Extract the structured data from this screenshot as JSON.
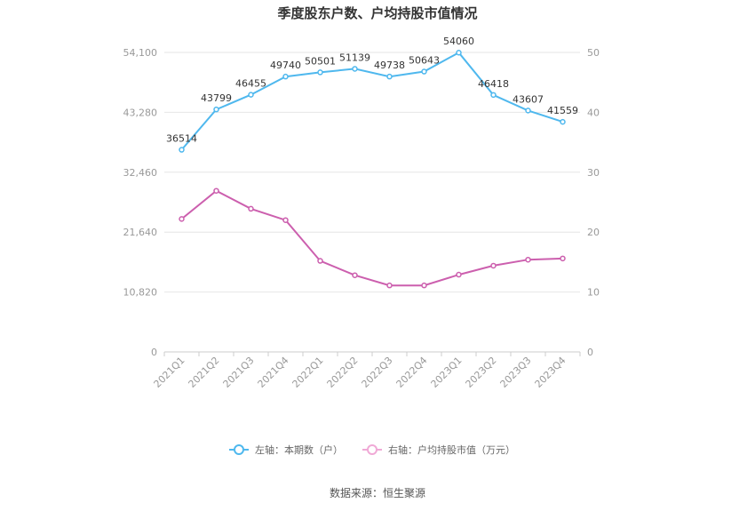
{
  "chart_data": {
    "type": "line",
    "title": "季度股东户数、户均持股市值情况",
    "categories": [
      "2021Q1",
      "2021Q2",
      "2021Q3",
      "2021Q4",
      "2022Q1",
      "2022Q2",
      "2022Q3",
      "2022Q4",
      "2023Q1",
      "2023Q2",
      "2023Q3",
      "2023Q4"
    ],
    "left_axis": {
      "ticks": [
        "0",
        "10,820",
        "21,640",
        "32,460",
        "43,280",
        "54,100"
      ],
      "ylim": [
        0,
        54100
      ]
    },
    "right_axis": {
      "ticks": [
        "0",
        "10",
        "20",
        "30",
        "40",
        "50"
      ],
      "ylim": [
        0,
        50
      ]
    },
    "grid": true,
    "legend_position": "bottom",
    "series": [
      {
        "name": "左轴：本期数（户）",
        "axis": "left",
        "color": "#4fb8ee",
        "values": [
          36514,
          43799,
          46455,
          49740,
          50501,
          51139,
          49738,
          50643,
          54060,
          46418,
          43607,
          41559
        ],
        "labels": [
          "36514",
          "43799",
          "46455",
          "49740",
          "50501",
          "51139",
          "49738",
          "50643",
          "54060",
          "46418",
          "43607",
          "41559"
        ]
      },
      {
        "name": "右轴：户均持股市值（万元）",
        "axis": "right",
        "color": "#cc5fae",
        "values": [
          22.2,
          26.9,
          23.9,
          22.0,
          15.2,
          12.8,
          11.1,
          11.1,
          12.9,
          14.4,
          15.4,
          15.6
        ]
      }
    ]
  },
  "source": "数据来源：恒生聚源"
}
